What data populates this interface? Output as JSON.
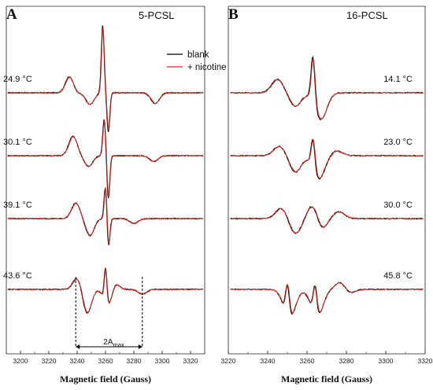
{
  "chart_data": [
    {
      "type": "line",
      "panel": "A",
      "title": "5-PCSL",
      "xlabel": "Magnetic field (Gauss)",
      "xlim": [
        3190,
        3330
      ],
      "x_ticks": [
        3200,
        3220,
        3240,
        3260,
        3280,
        3300,
        3320
      ],
      "legend": [
        "blank",
        "+ nicotine"
      ],
      "legend_position": "top-right",
      "series_colors": {
        "blank": "#000000",
        "+ nicotine": "#d42a1c"
      },
      "spectra": [
        {
          "temperature": "24.9 °C",
          "temp_value": "24.9",
          "temp_unit": "°C",
          "peaks": [
            [
              3235,
              42
            ],
            [
              3258,
              138
            ],
            [
              3237,
              -12
            ],
            [
              3249,
              -24
            ],
            [
              3262,
              -80
            ],
            [
              3295,
              -22
            ]
          ]
        },
        {
          "temperature": "30.1 °C",
          "temp_value": "30.1",
          "temp_unit": "°C",
          "peaks": [
            [
              3237,
              40
            ],
            [
              3259,
              75
            ],
            [
              3248,
              -22
            ],
            [
              3262,
              -88
            ],
            [
              3294,
              -12
            ]
          ]
        },
        {
          "temperature": "39.1 °C",
          "temp_value": "39.1",
          "temp_unit": "°C",
          "peaks": [
            [
              3239,
              32
            ],
            [
              3260,
              70
            ],
            [
              3249,
              -35
            ],
            [
              3262,
              -62
            ],
            [
              3280,
              -10
            ]
          ]
        },
        {
          "temperature": "43.6 °C",
          "temp_value": "43.6",
          "temp_unit": "°C",
          "peaks": [
            [
              3240,
              24
            ],
            [
              3260,
              72
            ],
            [
              3247,
              -50
            ],
            [
              3262,
              -40
            ],
            [
              3266,
              18
            ],
            [
              3286,
              -10
            ]
          ]
        }
      ],
      "annotation": {
        "label": "2A",
        "subscript": "max",
        "from": 3239,
        "to": 3286
      }
    },
    {
      "type": "line",
      "panel": "B",
      "title": "16-PCSL",
      "xlabel": "Magnetic field (Gauss)",
      "xlim": [
        3220,
        3320
      ],
      "x_ticks": [
        3220,
        3240,
        3260,
        3280,
        3300,
        3320
      ],
      "spectra": [
        {
          "temperature": "14.1 °C",
          "temp_value": "14.1",
          "temp_unit": "°C",
          "peaks": [
            [
              3245,
              28
            ],
            [
              3263,
              95
            ],
            [
              3254,
              -28
            ],
            [
              3267,
              -55
            ]
          ]
        },
        {
          "temperature": "23.0 °C",
          "temp_value": "23.0",
          "temp_unit": "°C",
          "peaks": [
            [
              3246,
              20
            ],
            [
              3263,
              62
            ],
            [
              3254,
              -34
            ],
            [
              3266,
              -48
            ],
            [
              3275,
              10
            ]
          ]
        },
        {
          "temperature": "30.0 °C",
          "temp_value": "30.0",
          "temp_unit": "°C",
          "peaks": [
            [
              3247,
              22
            ],
            [
              3264,
              58
            ],
            [
              3254,
              -32
            ],
            [
              3266,
              -52
            ],
            [
              3276,
              14
            ]
          ]
        },
        {
          "temperature": "45.8 °C",
          "temp_value": "45.8",
          "temp_unit": "°C",
          "peaks": [
            [
              3250,
              66
            ],
            [
              3251,
              -60
            ],
            [
              3264,
              62
            ],
            [
              3265,
              -58
            ],
            [
              3278,
              28
            ],
            [
              3280,
              -22
            ]
          ]
        }
      ]
    }
  ]
}
